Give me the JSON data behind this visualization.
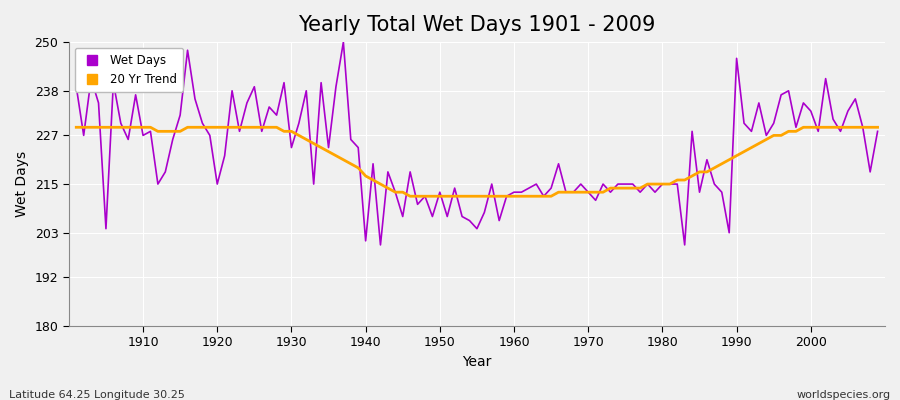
{
  "title": "Yearly Total Wet Days 1901 - 2009",
  "xlabel": "Year",
  "ylabel": "Wet Days",
  "xlim": [
    1900,
    2010
  ],
  "ylim": [
    180,
    250
  ],
  "yticks": [
    180,
    192,
    203,
    215,
    227,
    238,
    250
  ],
  "bg_color": "#f0f0f0",
  "plot_bg_color": "#f0f0f0",
  "grid_color": "#ffffff",
  "wet_days_color": "#aa00cc",
  "trend_color": "#ffa500",
  "wet_days_label": "Wet Days",
  "trend_label": "20 Yr Trend",
  "footnote_left": "Latitude 64.25 Longitude 30.25",
  "footnote_right": "worldspecies.org",
  "years": [
    1901,
    1902,
    1903,
    1904,
    1905,
    1906,
    1907,
    1908,
    1909,
    1910,
    1911,
    1912,
    1913,
    1914,
    1915,
    1916,
    1917,
    1918,
    1919,
    1920,
    1921,
    1922,
    1923,
    1924,
    1925,
    1926,
    1927,
    1928,
    1929,
    1930,
    1931,
    1932,
    1933,
    1934,
    1935,
    1936,
    1937,
    1938,
    1939,
    1940,
    1941,
    1942,
    1943,
    1944,
    1945,
    1946,
    1947,
    1948,
    1949,
    1950,
    1951,
    1952,
    1953,
    1954,
    1955,
    1956,
    1957,
    1958,
    1959,
    1960,
    1961,
    1962,
    1963,
    1964,
    1965,
    1966,
    1967,
    1968,
    1969,
    1970,
    1971,
    1972,
    1973,
    1974,
    1975,
    1976,
    1977,
    1978,
    1979,
    1980,
    1981,
    1982,
    1983,
    1984,
    1985,
    1986,
    1987,
    1988,
    1989,
    1990,
    1991,
    1992,
    1993,
    1994,
    1995,
    1996,
    1997,
    1998,
    1999,
    2000,
    2001,
    2002,
    2003,
    2004,
    2005,
    2006,
    2007,
    2008,
    2009
  ],
  "wet_days": [
    239,
    227,
    241,
    235,
    204,
    240,
    230,
    226,
    237,
    227,
    228,
    215,
    218,
    226,
    232,
    248,
    236,
    230,
    227,
    215,
    222,
    238,
    228,
    235,
    239,
    228,
    234,
    232,
    240,
    224,
    230,
    238,
    215,
    240,
    224,
    239,
    250,
    226,
    224,
    201,
    220,
    200,
    218,
    213,
    207,
    218,
    210,
    212,
    207,
    213,
    207,
    214,
    207,
    206,
    204,
    208,
    215,
    206,
    212,
    213,
    213,
    214,
    215,
    212,
    214,
    220,
    213,
    213,
    215,
    213,
    211,
    215,
    213,
    215,
    215,
    215,
    213,
    215,
    213,
    215,
    215,
    215,
    200,
    228,
    213,
    221,
    215,
    213,
    203,
    246,
    230,
    228,
    235,
    227,
    230,
    237,
    238,
    229,
    235,
    233,
    228,
    241,
    231,
    228,
    233,
    236,
    229,
    218,
    228
  ],
  "trend": [
    229,
    229,
    229,
    229,
    229,
    229,
    229,
    229,
    229,
    229,
    229,
    228,
    228,
    228,
    228,
    229,
    229,
    229,
    229,
    229,
    229,
    229,
    229,
    229,
    229,
    229,
    229,
    229,
    228,
    228,
    227,
    226,
    225,
    224,
    223,
    222,
    221,
    220,
    219,
    217,
    216,
    215,
    214,
    213,
    213,
    212,
    212,
    212,
    212,
    212,
    212,
    212,
    212,
    212,
    212,
    212,
    212,
    212,
    212,
    212,
    212,
    212,
    212,
    212,
    212,
    213,
    213,
    213,
    213,
    213,
    213,
    213,
    214,
    214,
    214,
    214,
    214,
    215,
    215,
    215,
    215,
    216,
    216,
    217,
    218,
    218,
    219,
    220,
    221,
    222,
    223,
    224,
    225,
    226,
    227,
    227,
    228,
    228,
    229,
    229,
    229,
    229,
    229,
    229,
    229,
    229,
    229,
    229,
    229
  ]
}
